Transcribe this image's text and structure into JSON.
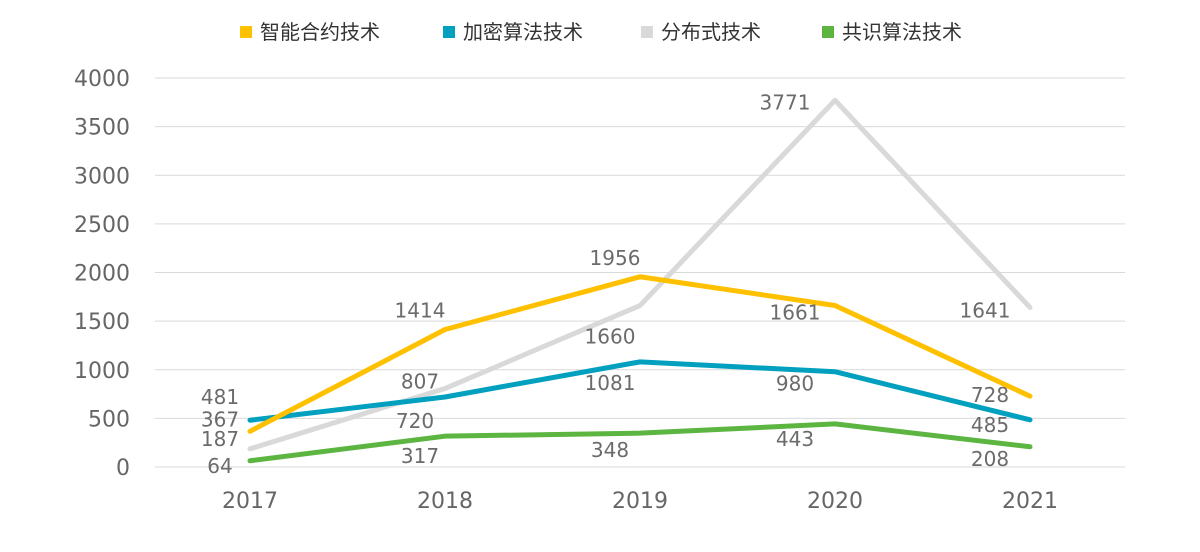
{
  "chart_data": {
    "type": "line",
    "title": "",
    "xlabel": "",
    "ylabel": "",
    "categories": [
      "2017",
      "2018",
      "2019",
      "2020",
      "2021"
    ],
    "ylim": [
      0,
      4000
    ],
    "yticks": [
      0,
      500,
      1000,
      1500,
      2000,
      2500,
      3000,
      3500,
      4000
    ],
    "grid": true,
    "legend_position": "top",
    "series": [
      {
        "name": "智能合约技术",
        "color": "#FFC000",
        "values": [
          367,
          1414,
          1956,
          1661,
          728
        ]
      },
      {
        "name": "加密算法技术",
        "color": "#00A0BE",
        "values": [
          481,
          720,
          1081,
          980,
          485
        ]
      },
      {
        "name": "分布式技术",
        "color": "#D9D9D9",
        "values": [
          187,
          807,
          1660,
          3771,
          1641
        ]
      },
      {
        "name": "共识算法技术",
        "color": "#5BB540",
        "values": [
          64,
          317,
          348,
          443,
          208
        ]
      }
    ]
  }
}
